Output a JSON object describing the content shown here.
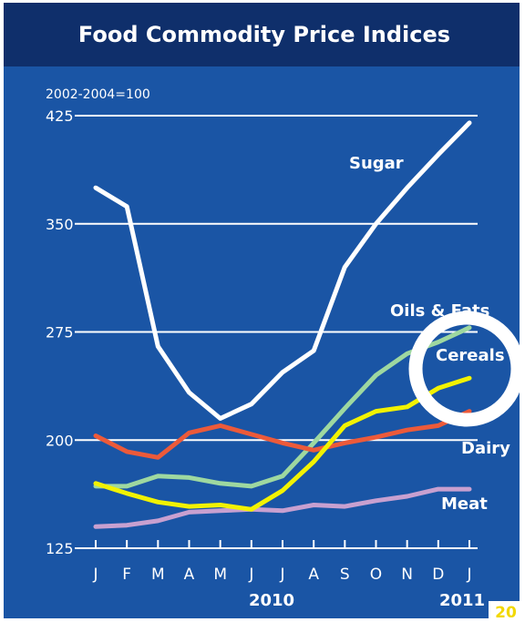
{
  "chart_data": {
    "type": "line",
    "title": "Food Commodity Price Indices",
    "unit_note": "2002-2004=100",
    "ylim": [
      125,
      425
    ],
    "yticks": [
      125,
      200,
      275,
      350,
      425
    ],
    "x": [
      "J",
      "F",
      "M",
      "A",
      "M",
      "J",
      "J",
      "A",
      "S",
      "O",
      "N",
      "D",
      "J"
    ],
    "year_labels": [
      "2010",
      "2011"
    ],
    "grid": true,
    "series": [
      {
        "name": "Sugar",
        "color": "#ffffff",
        "values": [
          375,
          362,
          265,
          233,
          215,
          225,
          247,
          262,
          320,
          350,
          375,
          398,
          420
        ]
      },
      {
        "name": "Oils & Fats",
        "color": "#9ed8a0",
        "values": [
          168,
          168,
          175,
          174,
          170,
          168,
          175,
          198,
          222,
          245,
          260,
          268,
          278
        ]
      },
      {
        "name": "Cereals",
        "color": "#f2f200",
        "values": [
          170,
          163,
          157,
          154,
          155,
          152,
          165,
          185,
          210,
          220,
          223,
          236,
          243
        ]
      },
      {
        "name": "Dairy",
        "color": "#ec5a3a",
        "values": [
          203,
          192,
          188,
          205,
          210,
          204,
          198,
          193,
          198,
          202,
          207,
          210,
          220
        ]
      },
      {
        "name": "Meat",
        "color": "#c8a0d0",
        "values": [
          140,
          141,
          144,
          150,
          151,
          152,
          151,
          155,
          154,
          158,
          161,
          166,
          166
        ]
      }
    ]
  },
  "page_number": "20",
  "colors": {
    "panel": "#1a55a5",
    "title_bar": "#0f2f6b"
  }
}
